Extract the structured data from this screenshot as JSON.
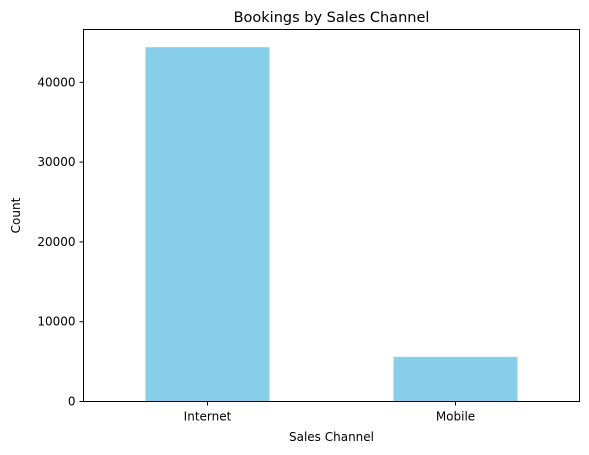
{
  "chart_data": {
    "type": "bar",
    "title": "Bookings by Sales Channel",
    "xlabel": "Sales Channel",
    "ylabel": "Count",
    "categories": [
      "Internet",
      "Mobile"
    ],
    "values": [
      44400,
      5600
    ],
    "ylim": [
      0,
      46620
    ],
    "yticks": [
      0,
      10000,
      20000,
      30000,
      40000
    ],
    "bar_color": "#87ceeb",
    "grid": false,
    "legend": "none"
  }
}
